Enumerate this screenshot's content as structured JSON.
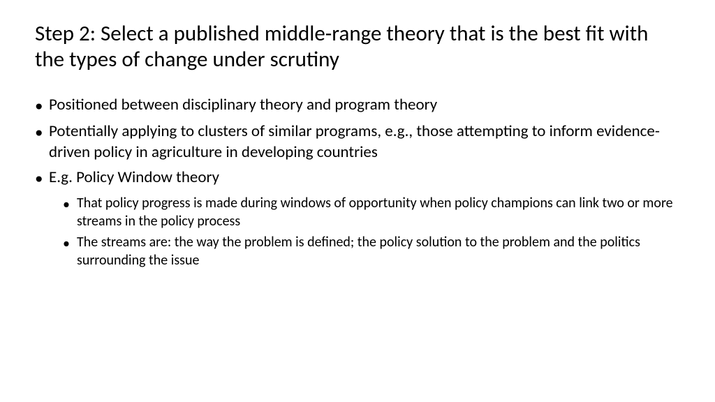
{
  "slide": {
    "title": "Step 2: Select a published middle-range theory that is the best fit with the types of change under scrutiny",
    "bullets": [
      {
        "text": "Positioned between disciplinary theory and program theory",
        "subs": []
      },
      {
        "text": "Potentially applying to clusters of similar programs, e.g., those attempting to inform evidence-driven policy in agriculture in developing countries",
        "subs": []
      },
      {
        "text": "E.g. Policy Window theory",
        "subs": [
          "That policy progress is made during windows of opportunity when policy champions can link two or more streams in the policy process",
          "The streams are: the way the problem is defined; the policy solution to the problem and the politics surrounding the issue"
        ]
      }
    ]
  },
  "style": {
    "background_color": "#ffffff",
    "text_color": "#000000",
    "title_fontsize": 31,
    "bullet_fontsize": 23,
    "sub_fontsize": 20,
    "font_family": "Calibri"
  }
}
